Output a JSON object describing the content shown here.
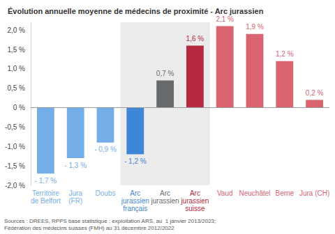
{
  "chart_data": {
    "type": "bar",
    "title": "Évolution annuelle moyenne de médecins de proximité - Arc jurassien",
    "categories": [
      "Territoire\nde Belfort",
      "Jura\n(FR)",
      "Doubs",
      "Arc\njurassien\nfrançais",
      "Arc\njurassien",
      "Arc\njurassien\nsuisse",
      "Vaud",
      "Neuchâtel",
      "Berne",
      "Jura (CH)"
    ],
    "values": [
      -1.7,
      -1.3,
      -0.9,
      -1.2,
      0.7,
      1.6,
      2.1,
      1.9,
      1.2,
      0.2
    ],
    "value_labels": [
      "- 1,7 %",
      "- 1,3 %",
      "- 0,9 %",
      "- 1,2 %",
      "0,7 %",
      "1,6 %",
      "2,1 %",
      "1,9 %",
      "1,2 %",
      "0,2 %"
    ],
    "colors": [
      "#74aee8",
      "#74aee8",
      "#74aee8",
      "#3f86d6",
      "#666a6d",
      "#b52a40",
      "#d9636f",
      "#d9636f",
      "#d9636f",
      "#d9636f"
    ],
    "ylim": [
      -2,
      2.2
    ],
    "yticks": [
      {
        "value": -2,
        "label": "-2,0 %"
      },
      {
        "value": -1.5,
        "label": "-1,5 %"
      },
      {
        "value": -1,
        "label": "-1,0 %"
      },
      {
        "value": -0.5,
        "label": "-0,5 %"
      },
      {
        "value": 0,
        "label": "0 %"
      },
      {
        "value": 0.5,
        "label": "0,5 %"
      },
      {
        "value": 1,
        "label": "1,0 %"
      },
      {
        "value": 1.5,
        "label": "1,5 %"
      },
      {
        "value": 2,
        "label": "2,0 %"
      }
    ],
    "grid": false,
    "data_labels": true,
    "source": "Sources : DREES, RPPS base statistique : exploitation ARS, au  1 janvier 2013/2023;\nFédération des médecins suisses (FMH) au 31 décembre 2012/2022"
  }
}
